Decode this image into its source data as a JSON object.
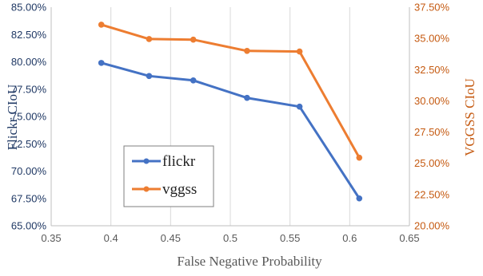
{
  "chart_data": {
    "type": "line",
    "xlabel": "False Negative Probability",
    "ylabel_left": "Flickr CIoU",
    "ylabel_right": "VGGSS CIoU",
    "xlim": [
      0.35,
      0.65
    ],
    "ylim_left": [
      65.0,
      85.0
    ],
    "ylim_right": [
      20.0,
      37.5
    ],
    "x_ticks": [
      "0.35",
      "0.4",
      "0.45",
      "0.5",
      "0.55",
      "0.6",
      "0.65"
    ],
    "y_ticks_left": [
      "65.00%",
      "67.50%",
      "70.00%",
      "72.50%",
      "75.00%",
      "77.50%",
      "80.00%",
      "82.50%",
      "85.00%"
    ],
    "y_ticks_right": [
      "20.00%",
      "22.50%",
      "25.00%",
      "27.50%",
      "30.00%",
      "32.50%",
      "35.00%",
      "37.50%"
    ],
    "grid": "vertical",
    "legend_position": "bottom-left",
    "series": [
      {
        "name": "flickr",
        "axis": "left",
        "color": "#4472C4",
        "x": [
          0.392,
          0.432,
          0.469,
          0.514,
          0.558,
          0.608
        ],
        "y": [
          79.9,
          78.7,
          78.3,
          76.7,
          75.9,
          67.5
        ]
      },
      {
        "name": "vggss",
        "axis": "right",
        "color": "#ED7D31",
        "x": [
          0.392,
          0.432,
          0.469,
          0.514,
          0.558,
          0.608
        ],
        "y": [
          36.1,
          34.95,
          34.9,
          34.0,
          33.95,
          25.45
        ]
      }
    ]
  }
}
